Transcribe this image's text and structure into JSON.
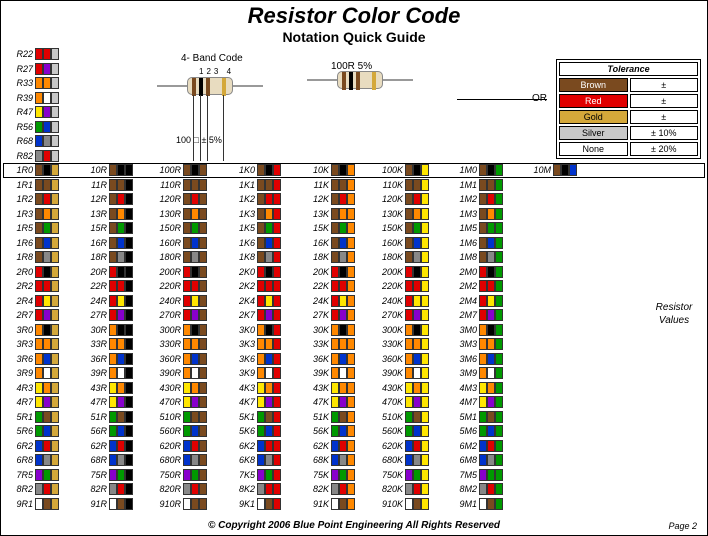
{
  "title": "Resistor Color Code",
  "subtitle": "Notation Quick Guide",
  "band_label": "4- Band Code",
  "band_nums": "123 4",
  "example_top": "100R 5%",
  "example_bottom": "100 □ ± 5%",
  "or_label": "OR",
  "rv_label": "Resistor Values",
  "footer": "© Copyright 2006 Blue Point Engineering   All Rights Reserved",
  "page": "Page 2",
  "tol_head": "Tolerance",
  "tolerance": [
    {
      "label": "Brown",
      "bg": "#7a4a1f",
      "fg": "#fff",
      "v": "±"
    },
    {
      "label": "Red",
      "bg": "#e00000",
      "fg": "#fff",
      "v": "±"
    },
    {
      "label": "Gold",
      "bg": "#d4a83a",
      "fg": "#000",
      "v": "±"
    },
    {
      "label": "Silver",
      "bg": "#c8c8c8",
      "fg": "#000",
      "v": "± 10%"
    },
    {
      "label": "None",
      "bg": "#ffffff",
      "fg": "#000",
      "v": "± 20%"
    }
  ],
  "colors": {
    "black": "#000000",
    "brown": "#7a4a1f",
    "red": "#e00000",
    "orange": "#ff8800",
    "yellow": "#ffe600",
    "green": "#009900",
    "blue": "#0033cc",
    "violet": "#8800cc",
    "grey": "#888888",
    "white": "#ffffff",
    "gold": "#d4a83a",
    "silver": "#c8c8c8"
  },
  "pre_rows": [
    {
      "l": "R22",
      "b": [
        "red",
        "red",
        "silver",
        null
      ]
    },
    {
      "l": "R27",
      "b": [
        "red",
        "violet",
        "silver",
        null
      ]
    },
    {
      "l": "R33",
      "b": [
        "orange",
        "orange",
        "silver",
        null
      ]
    },
    {
      "l": "R39",
      "b": [
        "orange",
        "white",
        "silver",
        null
      ]
    },
    {
      "l": "R47",
      "b": [
        "yellow",
        "violet",
        "silver",
        null
      ]
    },
    {
      "l": "R56",
      "b": [
        "green",
        "blue",
        "silver",
        null
      ]
    },
    {
      "l": "R68",
      "b": [
        "blue",
        "grey",
        "silver",
        null
      ]
    },
    {
      "l": "R82",
      "b": [
        "grey",
        "red",
        "silver",
        null
      ]
    }
  ],
  "columns": [
    {
      "mult": "gold",
      "labels": [
        "1R0",
        "1R1",
        "1R2",
        "1R3",
        "1R5",
        "1R6",
        "1R8",
        "2R0",
        "2R2",
        "2R4",
        "2R7",
        "3R0",
        "3R3",
        "3R6",
        "3R9",
        "4R3",
        "4R7",
        "5R1",
        "5R6",
        "6R2",
        "6R8",
        "7R5",
        "8R2",
        "9R1"
      ]
    },
    {
      "mult": "black",
      "labels": [
        "10R",
        "11R",
        "12R",
        "13R",
        "15R",
        "16R",
        "18R",
        "20R",
        "22R",
        "24R",
        "27R",
        "30R",
        "33R",
        "36R",
        "39R",
        "43R",
        "47R",
        "51R",
        "56R",
        "62R",
        "68R",
        "75R",
        "82R",
        "91R"
      ]
    },
    {
      "mult": "brown",
      "labels": [
        "100R",
        "110R",
        "120R",
        "130R",
        "150R",
        "160R",
        "180R",
        "200R",
        "220R",
        "240R",
        "270R",
        "300R",
        "330R",
        "360R",
        "390R",
        "430R",
        "470R",
        "510R",
        "560R",
        "620R",
        "680R",
        "750R",
        "820R",
        "910R"
      ]
    },
    {
      "mult": "red",
      "labels": [
        "1K0",
        "1K1",
        "1K2",
        "1K3",
        "1K5",
        "1K6",
        "1K8",
        "2K0",
        "2K2",
        "2K4",
        "2K7",
        "3K0",
        "3K3",
        "3K6",
        "3K9",
        "4K3",
        "4K7",
        "5K1",
        "5K6",
        "6K2",
        "6K8",
        "7K5",
        "8K2",
        "9K1"
      ]
    },
    {
      "mult": "orange",
      "labels": [
        "10K",
        "11K",
        "12K",
        "13K",
        "15K",
        "16K",
        "18K",
        "20K",
        "22K",
        "24K",
        "27K",
        "30K",
        "33K",
        "36K",
        "39K",
        "43K",
        "47K",
        "51K",
        "56K",
        "62K",
        "68K",
        "75K",
        "82K",
        "91K"
      ]
    },
    {
      "mult": "yellow",
      "labels": [
        "100K",
        "110K",
        "120K",
        "130K",
        "150K",
        "160K",
        "180K",
        "200K",
        "220K",
        "240K",
        "270K",
        "300K",
        "330K",
        "360K",
        "390K",
        "430K",
        "470K",
        "510K",
        "560K",
        "620K",
        "680K",
        "750K",
        "820K",
        "910K"
      ]
    },
    {
      "mult": "green",
      "labels": [
        "1M0",
        "1M1",
        "1M2",
        "1M3",
        "1M5",
        "1M6",
        "1M8",
        "2M0",
        "2M2",
        "2M4",
        "2M7",
        "3M0",
        "3M3",
        "3M6",
        "3M9",
        "4M3",
        "4M7",
        "5M1",
        "5M6",
        "6M2",
        "6M8",
        "7M5",
        "8M2",
        "9M1"
      ]
    },
    {
      "mult": "blue",
      "labels": [
        "10M"
      ]
    }
  ],
  "digits": [
    [
      "brown",
      "black"
    ],
    [
      "brown",
      "brown"
    ],
    [
      "brown",
      "red"
    ],
    [
      "brown",
      "orange"
    ],
    [
      "brown",
      "green"
    ],
    [
      "brown",
      "blue"
    ],
    [
      "brown",
      "grey"
    ],
    [
      "red",
      "black"
    ],
    [
      "red",
      "red"
    ],
    [
      "red",
      "yellow"
    ],
    [
      "red",
      "violet"
    ],
    [
      "orange",
      "black"
    ],
    [
      "orange",
      "orange"
    ],
    [
      "orange",
      "blue"
    ],
    [
      "orange",
      "white"
    ],
    [
      "yellow",
      "orange"
    ],
    [
      "yellow",
      "violet"
    ],
    [
      "green",
      "brown"
    ],
    [
      "green",
      "blue"
    ],
    [
      "blue",
      "red"
    ],
    [
      "blue",
      "grey"
    ],
    [
      "violet",
      "green"
    ],
    [
      "grey",
      "red"
    ],
    [
      "white",
      "brown"
    ]
  ]
}
